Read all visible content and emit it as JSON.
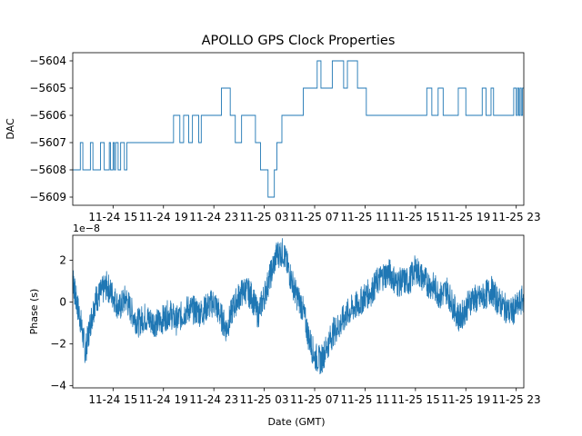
{
  "figure": {
    "title": "APOLLO GPS Clock Properties",
    "line_color": "#1f77b4"
  },
  "chart_data": [
    {
      "type": "line",
      "title": "APOLLO GPS Clock Properties",
      "xlabel": "",
      "ylabel": "DAC",
      "x_tick_labels": [
        "11-24 15",
        "11-24 19",
        "11-24 23",
        "11-25 03",
        "11-25 07",
        "11-25 11",
        "11-25 15",
        "11-25 19",
        "11-25 23"
      ],
      "x_tick_hours": [
        15,
        19,
        23,
        27,
        31,
        35,
        39,
        43,
        47
      ],
      "xlim_hours": [
        11.8,
        47.6
      ],
      "ylim": [
        -5609.3,
        -5603.7
      ],
      "y_ticks": [
        -5609,
        -5608,
        -5607,
        -5606,
        -5605,
        -5604
      ],
      "y_tick_labels": [
        "−5609",
        "−5608",
        "−5607",
        "−5606",
        "−5605",
        "−5604"
      ],
      "step": true,
      "series": [
        {
          "x_hours": [
            11.8,
            12.4,
            12.6,
            13.2,
            13.4,
            14.0,
            14.3,
            14.7,
            14.8,
            15.0,
            15.1,
            15.2,
            15.4,
            15.6,
            15.9,
            16.1,
            16.3,
            16.5,
            16.7,
            16.9,
            17.1,
            17.3,
            17.5,
            18.5,
            19.8,
            20.3,
            20.6,
            21.0,
            21.3,
            21.8,
            22.0,
            22.6,
            23.2,
            23.6,
            24.3,
            24.7,
            25.2,
            25.5,
            26.3,
            26.7,
            27.3,
            27.8,
            28.0,
            28.4,
            29.3,
            29.7,
            30.1,
            31.2,
            31.5,
            32.0,
            32.4,
            33.3,
            33.6,
            34.4,
            34.7,
            34.9,
            35.1,
            37.4,
            38.4,
            38.6,
            39.9,
            40.3,
            40.8,
            41.2,
            41.4,
            42.0,
            42.4,
            43.0,
            43.3,
            44.3,
            44.6,
            45.0,
            45.2,
            46.8,
            47.0,
            47.1,
            47.2,
            47.3,
            47.4,
            47.5,
            47.6
          ],
          "y": [
            -5608,
            -5607,
            -5608,
            -5607,
            -5608,
            -5607,
            -5608,
            -5607,
            -5608,
            -5607,
            -5608,
            -5607,
            -5608,
            -5607,
            -5608,
            -5607,
            -5607,
            -5607,
            -5607,
            -5607,
            -5607,
            -5607,
            -5607,
            -5607,
            -5606,
            -5607,
            -5606,
            -5607,
            -5606,
            -5607,
            -5606,
            -5606,
            -5606,
            -5605,
            -5606,
            -5607,
            -5606,
            -5606,
            -5607,
            -5608,
            -5609,
            -5608,
            -5607,
            -5606,
            -5606,
            -5606,
            -5605,
            -5604,
            -5605,
            -5605,
            -5604,
            -5605,
            -5604,
            -5605,
            -5605,
            -5605,
            -5606,
            -5606,
            -5606,
            -5606,
            -5605,
            -5606,
            -5605,
            -5606,
            -5606,
            -5606,
            -5605,
            -5606,
            -5606,
            -5605,
            -5606,
            -5605,
            -5606,
            -5605,
            -5606,
            -5605,
            -5606,
            -5605,
            -5606,
            -5605,
            -5605
          ]
        }
      ]
    },
    {
      "type": "line",
      "xlabel": "Date (GMT)",
      "ylabel": "Phase (s)",
      "y_scale_label": "1e−8",
      "x_tick_labels": [
        "11-24 15",
        "11-24 19",
        "11-24 23",
        "11-25 03",
        "11-25 07",
        "11-25 11",
        "11-25 15",
        "11-25 19",
        "11-25 23"
      ],
      "x_tick_hours": [
        15,
        19,
        23,
        27,
        31,
        35,
        39,
        43,
        47
      ],
      "xlim_hours": [
        11.8,
        47.6
      ],
      "ylim": [
        -4.1,
        3.2
      ],
      "y_ticks": [
        -4,
        -2,
        0,
        2
      ],
      "y_tick_labels": [
        "−4",
        "−2",
        "0",
        "2"
      ],
      "series": [
        {
          "x_hours": [
            11.8,
            12.0,
            12.4,
            12.8,
            13.2,
            13.6,
            14.0,
            14.5,
            15.0,
            15.5,
            16.0,
            16.5,
            17.0,
            17.5,
            18.0,
            18.5,
            19.0,
            19.5,
            20.0,
            20.5,
            21.0,
            21.5,
            22.0,
            22.5,
            23.0,
            23.5,
            24.0,
            24.5,
            25.0,
            25.5,
            26.0,
            26.5,
            27.0,
            27.5,
            28.0,
            28.5,
            29.0,
            29.5,
            30.0,
            30.5,
            31.0,
            31.5,
            32.0,
            32.5,
            33.0,
            33.5,
            34.0,
            34.5,
            35.0,
            35.5,
            36.0,
            36.5,
            37.0,
            37.5,
            38.0,
            38.5,
            39.0,
            39.5,
            40.0,
            40.5,
            41.0,
            41.5,
            42.0,
            42.5,
            43.0,
            43.5,
            44.0,
            44.5,
            45.0,
            45.5,
            46.0,
            46.5,
            47.0,
            47.6
          ],
          "y": [
            1.2,
            0.3,
            -0.8,
            -2.4,
            -1.0,
            0.1,
            0.4,
            0.8,
            0.3,
            -0.3,
            0.2,
            -0.5,
            -1.0,
            -0.7,
            -0.9,
            -1.0,
            -0.8,
            -0.5,
            -0.9,
            -0.6,
            -0.3,
            -0.4,
            -0.5,
            -0.2,
            0.0,
            -0.6,
            -1.3,
            -0.3,
            0.3,
            0.6,
            0.3,
            -0.6,
            0.3,
            1.3,
            2.3,
            2.4,
            1.4,
            0.4,
            -0.2,
            -1.6,
            -2.6,
            -2.8,
            -2.1,
            -1.4,
            -1.1,
            -0.6,
            -0.3,
            -0.1,
            0.3,
            0.5,
            1.0,
            1.3,
            1.4,
            0.9,
            1.0,
            1.0,
            1.6,
            1.2,
            0.9,
            0.7,
            0.3,
            0.6,
            -0.2,
            -0.8,
            -0.3,
            0.2,
            0.1,
            0.3,
            0.6,
            0.1,
            -0.2,
            -0.5,
            -0.3,
            0.2
          ]
        }
      ]
    }
  ]
}
